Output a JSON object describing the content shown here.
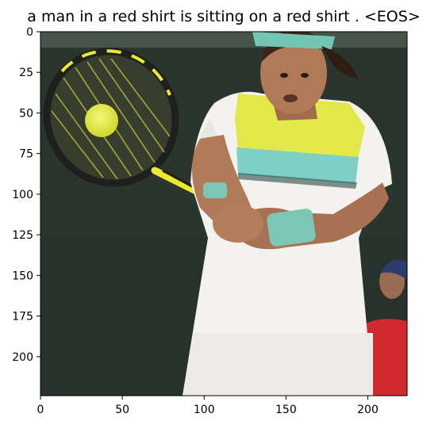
{
  "figure": {
    "title": "a man in a red shirt is sitting on a red shirt . <EOS>",
    "image_extent": {
      "x": [
        0,
        224
      ],
      "y": [
        0,
        224
      ]
    },
    "x_axis": {
      "ticks": [
        0,
        50,
        100,
        150,
        200
      ],
      "labels": [
        "0",
        "50",
        "100",
        "150",
        "200"
      ]
    },
    "y_axis": {
      "ticks": [
        0,
        25,
        50,
        75,
        100,
        125,
        150,
        175,
        200
      ],
      "labels": [
        "0",
        "25",
        "50",
        "75",
        "100",
        "125",
        "150",
        "175",
        "200"
      ],
      "inverted": true
    },
    "image_content": "tennis-player-backhand",
    "colors": {
      "background_dark": "#2a352d",
      "shirt": "#f4f2ee",
      "shirt_yellow": "#e3e84a",
      "shirt_teal": "#7fd0c4",
      "wristband": "#7cc7b6",
      "headband": "#73c5b6",
      "ball": "#e6ee3a",
      "racket_frame": "#1f1f1f",
      "racket_accent": "#e9ea2f",
      "skin": "#b07a57",
      "spectator_red": "#d32a2f"
    }
  }
}
